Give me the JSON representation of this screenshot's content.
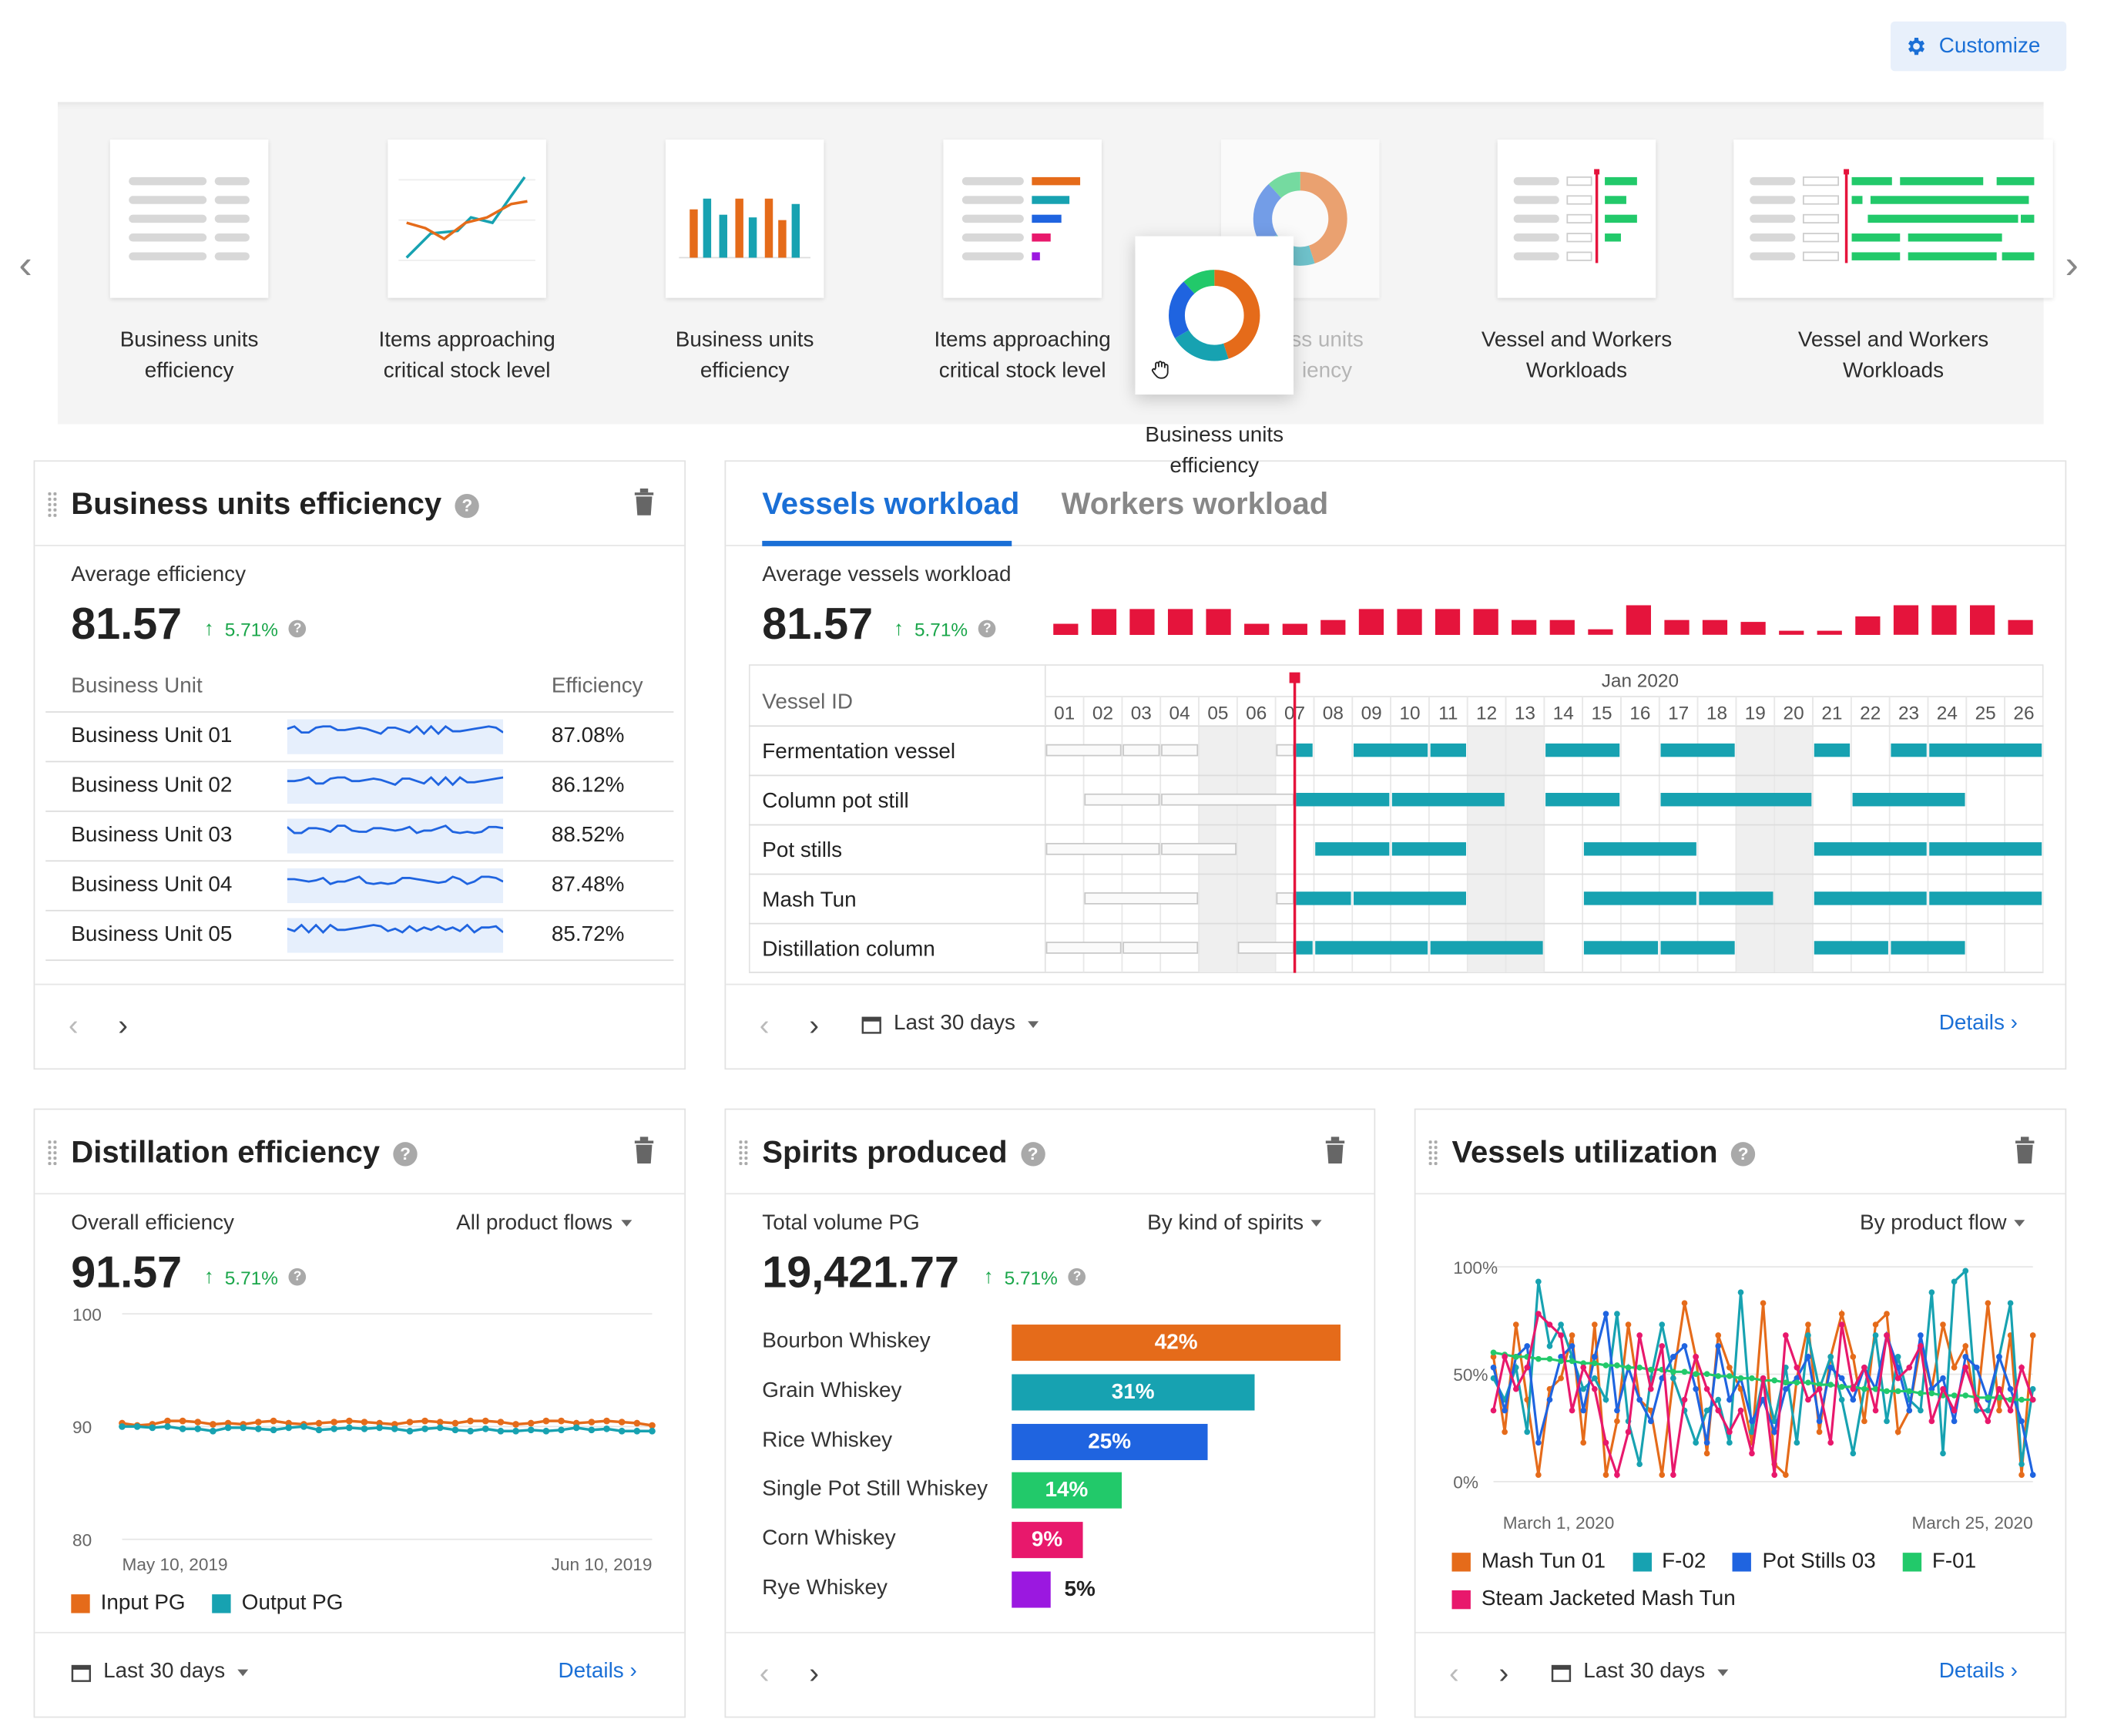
{
  "header": {
    "customize_label": "Customize",
    "customize_icon": "gear-icon"
  },
  "gallery": {
    "items": [
      {
        "label_line1": "Business units",
        "label_line2": "efficiency",
        "thumb": "table-thumbnail"
      },
      {
        "label_line1": "Items approaching",
        "label_line2": "critical stock level",
        "thumb": "line-thumbnail"
      },
      {
        "label_line1": "Business units",
        "label_line2": "efficiency",
        "thumb": "bar-thumbnail"
      },
      {
        "label_line1": "Items approaching",
        "label_line2": "critical stock level",
        "thumb": "hbar-thumbnail"
      },
      {
        "label_line1": "ss units",
        "label_line2": "iency",
        "thumb": "donut-thumbnail"
      },
      {
        "label_line1": "Vessel and Workers",
        "label_line2": "Workloads",
        "thumb": "gantt-thumbnail"
      },
      {
        "label_line1": "Vessel and Workers",
        "label_line2": "Workloads",
        "thumb": "gantt-wide-thumbnail"
      }
    ],
    "dragging": {
      "label_line1": "Business units",
      "label_line2": "efficiency"
    }
  },
  "bue": {
    "title": "Business units efficiency",
    "avg_label": "Average efficiency",
    "avg_value": "81.57",
    "delta": "5.71%",
    "col_unit": "Business Unit",
    "col_eff": "Efficiency",
    "rows": [
      {
        "name": "Business Unit 01",
        "value": "87.08%"
      },
      {
        "name": "Business Unit 02",
        "value": "86.12%"
      },
      {
        "name": "Business Unit 03",
        "value": "88.52%"
      },
      {
        "name": "Business Unit 04",
        "value": "87.48%"
      },
      {
        "name": "Business Unit 05",
        "value": "85.72%"
      }
    ]
  },
  "vessels": {
    "tab_active": "Vessels workload",
    "tab_inactive": "Workers workload",
    "avg_label": "Average vessels workload",
    "avg_value": "81.57",
    "delta": "5.71%",
    "month": "Jan 2020",
    "col_id": "Vessel ID",
    "days": [
      "01",
      "02",
      "03",
      "04",
      "05",
      "06",
      "07",
      "08",
      "09",
      "10",
      "11",
      "12",
      "13",
      "14",
      "15",
      "16",
      "17",
      "18",
      "19",
      "20",
      "21",
      "22",
      "23",
      "24",
      "25",
      "26"
    ],
    "rows": [
      "Fermentation vessel",
      "Column pot still",
      "Pot stills",
      "Mash Tun",
      "Distillation column"
    ],
    "date_range": "Last 30 days",
    "details": "Details ›"
  },
  "distillation": {
    "title": "Distillation efficiency",
    "overall_label": "Overall efficiency",
    "filter": "All product flows",
    "value": "91.57",
    "delta": "5.71%",
    "date_range": "Last 30 days",
    "details": "Details ›"
  },
  "spirits": {
    "title": "Spirits produced",
    "total_label": "Total volume PG",
    "filter": "By kind of spirits",
    "value": "19,421.77",
    "delta": "5.71%"
  },
  "utilization": {
    "title": "Vessels utilization",
    "filter": "By product flow",
    "date_range": "Last 30 days",
    "details": "Details ›"
  },
  "colors": {
    "accent": "#1a6fd6",
    "positive": "#1aa64a",
    "red": "#e5143c",
    "teal": "#17a2b1",
    "orange": "#e56b1a"
  },
  "chart_data": [
    {
      "type": "bar",
      "title": "Average vessels workload sparkline",
      "values": [
        30,
        70,
        70,
        70,
        70,
        30,
        30,
        40,
        70,
        70,
        70,
        70,
        40,
        40,
        15,
        80,
        40,
        40,
        35,
        10,
        10,
        50,
        80,
        80,
        80,
        40
      ]
    },
    {
      "type": "line",
      "x_labels": [
        "May 10, 2019",
        "Jun 10, 2019"
      ],
      "ylim": [
        80,
        100
      ],
      "y_ticks": [
        "100",
        "90",
        "80"
      ],
      "series": [
        {
          "name": "Input PG",
          "color": "#e56b1a",
          "values": [
            90.3,
            90.1,
            90.2,
            90.5,
            90.5,
            90.4,
            90.2,
            90.3,
            90.2,
            90.4,
            90.5,
            90.3,
            90.2,
            90.3,
            90.4,
            90.5,
            90.4,
            90.3,
            90.2,
            90.4,
            90.5,
            90.4,
            90.3,
            90.5,
            90.5,
            90.4,
            90.2,
            90.3,
            90.5,
            90.5,
            90.3,
            90.4,
            90.5,
            90.4,
            90.3,
            90.1
          ]
        },
        {
          "name": "Output PG",
          "color": "#17a2b1",
          "values": [
            90.0,
            90.0,
            89.9,
            90.0,
            89.8,
            89.8,
            89.6,
            89.9,
            89.9,
            89.8,
            89.7,
            89.9,
            90.0,
            89.7,
            89.8,
            89.9,
            89.8,
            89.9,
            89.8,
            89.6,
            89.8,
            89.9,
            89.7,
            89.6,
            89.8,
            89.6,
            89.6,
            89.7,
            89.6,
            89.7,
            89.9,
            89.7,
            89.8,
            89.6,
            89.6,
            89.6
          ]
        }
      ]
    },
    {
      "type": "bar",
      "orientation": "horizontal",
      "categories": [
        "Bourbon Whiskey",
        "Grain Whiskey",
        "Rice Whiskey",
        "Single Pot Still Whiskey",
        "Corn Whiskey",
        "Rye Whiskey"
      ],
      "values": [
        42,
        31,
        25,
        14,
        9,
        5
      ],
      "labels": [
        "42%",
        "31%",
        "25%",
        "14%",
        "9%",
        "5%"
      ],
      "colors": [
        "#e56b1a",
        "#17a2b1",
        "#1f64e0",
        "#22c96a",
        "#e8186c",
        "#9b18e0"
      ]
    },
    {
      "type": "line",
      "x_labels": [
        "March 1, 2020",
        "March 25, 2020"
      ],
      "y_ticks": [
        "100%",
        "50%",
        "0%"
      ],
      "ylim": [
        0,
        100
      ],
      "series": [
        {
          "name": "Mash Tun 01",
          "color": "#e56b1a",
          "values": [
            60,
            25,
            75,
            40,
            5,
            45,
            50,
            70,
            20,
            75,
            5,
            30,
            75,
            40,
            35,
            5,
            50,
            85,
            60,
            15,
            70,
            55,
            45,
            20,
            85,
            10,
            5,
            50,
            75,
            25,
            60,
            80,
            60,
            30,
            75,
            80,
            25,
            35,
            65,
            45,
            75,
            55,
            65,
            35,
            85,
            35,
            70,
            5,
            70
          ]
        },
        {
          "name": "F-02",
          "color": "#17a2b1",
          "values": [
            50,
            40,
            55,
            25,
            95,
            65,
            75,
            60,
            45,
            50,
            40,
            80,
            30,
            10,
            50,
            75,
            50,
            35,
            20,
            35,
            40,
            20,
            90,
            25,
            50,
            30,
            55,
            20,
            70,
            45,
            60,
            40,
            15,
            45,
            70,
            30,
            60,
            40,
            35,
            90,
            15,
            95,
            100,
            35,
            35,
            60,
            85,
            10,
            45
          ]
        },
        {
          "name": "Pot Stills 03",
          "color": "#1f64e0",
          "values": [
            55,
            35,
            60,
            65,
            20,
            40,
            60,
            65,
            35,
            60,
            80,
            35,
            55,
            40,
            30,
            50,
            60,
            65,
            45,
            20,
            65,
            40,
            50,
            30,
            40,
            25,
            45,
            50,
            60,
            30,
            55,
            50,
            40,
            55,
            45,
            70,
            55,
            35,
            70,
            45,
            50,
            30,
            60,
            55,
            40,
            60,
            45,
            30,
            5
          ]
        },
        {
          "name": "F-01",
          "color": "#22c96a",
          "values": [
            62,
            61,
            60,
            60,
            59,
            59,
            58,
            58,
            57,
            57,
            56,
            56,
            55,
            55,
            54,
            54,
            53,
            53,
            52,
            52,
            51,
            51,
            50,
            50,
            49,
            49,
            48,
            48,
            48,
            47,
            47,
            46,
            46,
            45,
            45,
            44,
            44,
            44,
            43,
            43,
            42,
            42,
            42,
            41,
            41,
            41,
            40,
            40,
            40
          ]
        },
        {
          "name": "Steam Jacketed Mash Tun",
          "color": "#e8186c",
          "values": [
            35,
            60,
            45,
            55,
            80,
            75,
            70,
            35,
            55,
            45,
            20,
            5,
            25,
            70,
            45,
            65,
            5,
            40,
            60,
            45,
            35,
            25,
            35,
            15,
            50,
            5,
            70,
            55,
            40,
            45,
            20,
            75,
            45,
            55,
            35,
            70,
            50,
            55,
            65,
            30,
            45,
            35,
            55,
            40,
            30,
            45,
            35,
            55,
            40
          ]
        }
      ]
    }
  ]
}
